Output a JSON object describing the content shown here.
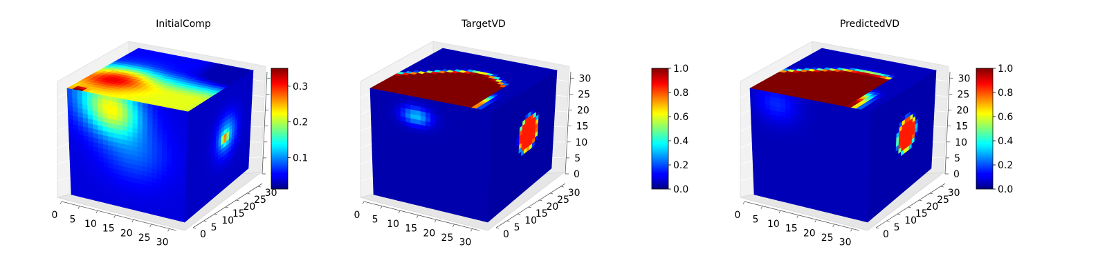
{
  "chart_data": [
    {
      "type": "heatmap",
      "subtype": "3d-voxel-cube",
      "title": "InitialComp",
      "colormap": "jet",
      "colorbar": {
        "range": [
          0.012,
          0.35
        ],
        "ticks": [
          0.1,
          0.2,
          0.3
        ],
        "tick_labels": [
          "0.1",
          "0.2",
          "0.3"
        ]
      },
      "axes": {
        "x": {
          "range": [
            0,
            32
          ],
          "ticks": [
            0,
            5,
            10,
            15,
            20,
            25,
            30
          ]
        },
        "y": {
          "range": [
            0,
            32
          ],
          "ticks": [
            0,
            5,
            10,
            15,
            20,
            25,
            30
          ]
        },
        "z": {
          "range": [
            0,
            32
          ],
          "ticks": [
            0,
            5,
            10,
            15,
            20,
            25,
            30
          ],
          "tick_labels_shown": false
        }
      },
      "features": {
        "top_face": "broad green/cyan region (~0.15-0.2) over back-left of top face, small red hotspot (~0.35) near back corner",
        "front_face": "cyan/light-blue blob (~0.1) below the top-left edge, fading to dark blue (~0.02)",
        "right_face": "circular blob (~0.12) with a small red center (~0.35)"
      }
    },
    {
      "type": "heatmap",
      "subtype": "3d-voxel-cube",
      "title": "TargetVD",
      "colormap": "jet",
      "colorbar": {
        "range": [
          0.0,
          1.0
        ],
        "ticks": [
          0.0,
          0.2,
          0.4,
          0.6,
          0.8,
          1.0
        ],
        "tick_labels": [
          "0.0",
          "0.2",
          "0.4",
          "0.6",
          "0.8",
          "1.0"
        ]
      },
      "axes": {
        "x": {
          "range": [
            0,
            32
          ],
          "ticks": [
            0,
            5,
            10,
            15,
            20,
            25,
            30
          ]
        },
        "y": {
          "range": [
            0,
            32
          ],
          "ticks": [
            0,
            5,
            10,
            15,
            20,
            25,
            30
          ]
        },
        "z": {
          "range": [
            0,
            32
          ],
          "ticks": [
            0,
            5,
            10,
            15,
            20,
            25,
            30
          ],
          "tick_labels": [
            "0",
            "5",
            "10",
            "15",
            "20",
            "25",
            "30"
          ]
        }
      },
      "features": {
        "top_face": "dark red region (1.0) over the back portion, sharp transition to dark blue (0.0)",
        "front_face": "small light-blue streak (~0.3) near top-left",
        "right_face": "circular dark-red blob (1.0) with sharp edge"
      }
    },
    {
      "type": "heatmap",
      "subtype": "3d-voxel-cube",
      "title": "PredictedVD",
      "colormap": "jet",
      "colorbar": {
        "range": [
          0.0,
          1.0
        ],
        "ticks": [
          0.0,
          0.2,
          0.4,
          0.6,
          0.8,
          1.0
        ],
        "tick_labels": [
          "0.0",
          "0.2",
          "0.4",
          "0.6",
          "0.8",
          "1.0"
        ]
      },
      "axes": {
        "x": {
          "range": [
            0,
            32
          ],
          "ticks": [
            0,
            5,
            10,
            15,
            20,
            25,
            30
          ]
        },
        "y": {
          "range": [
            0,
            32
          ],
          "ticks": [
            0,
            5,
            10,
            15,
            20,
            25,
            30
          ]
        },
        "z": {
          "range": [
            0,
            32
          ],
          "ticks": [
            0,
            5,
            10,
            15,
            20,
            25,
            30
          ],
          "tick_labels": [
            "0",
            "5",
            "10",
            "15",
            "20",
            "25",
            "30"
          ]
        }
      },
      "features": {
        "top_face": "dark red region (1.0) over the back portion, smooth transition to dark blue (0.0)",
        "front_face": "faint blue shading near top-left",
        "right_face": "circular dark-red blob (1.0)"
      }
    }
  ]
}
